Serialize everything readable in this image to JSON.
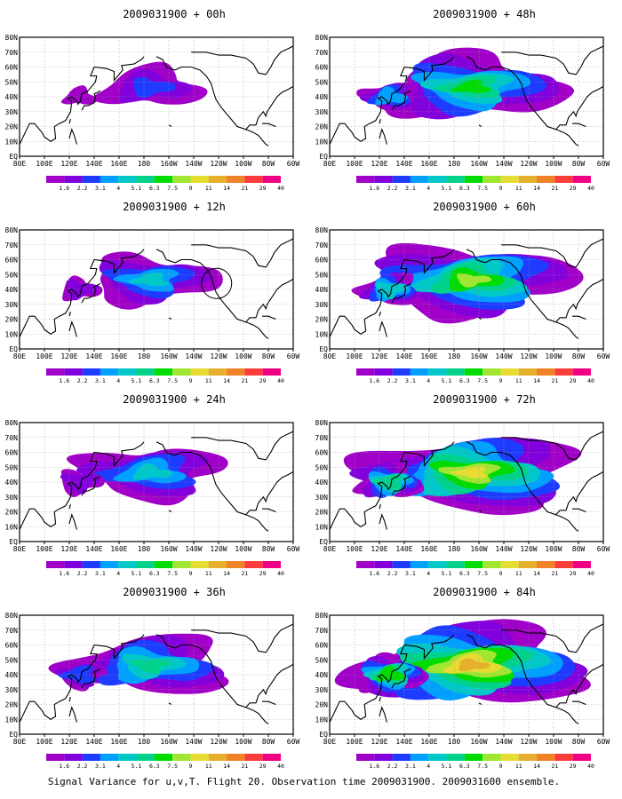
{
  "caption": "Signal Variance for u,v,T. Flight 20. Observation time 2009031900. 2009031600 ensemble.",
  "colorbar": {
    "labels": [
      "1.6",
      "2.2",
      "3.1",
      "4",
      "5.1",
      "6.3",
      "7.5",
      "9",
      "11",
      "14",
      "21",
      "29",
      "40"
    ],
    "colors": [
      "#a000c8",
      "#8200dc",
      "#1e3cff",
      "#00a0ff",
      "#00c8c8",
      "#00d28c",
      "#00dc00",
      "#a0e632",
      "#e6dc32",
      "#e6af2d",
      "#f08228",
      "#fa3c3c",
      "#f00082"
    ]
  },
  "axes": {
    "lon_labels": [
      "80E",
      "100E",
      "120E",
      "140E",
      "160E",
      "180",
      "160W",
      "140W",
      "120W",
      "100W",
      "80W",
      "60W"
    ],
    "lat_labels": [
      "80N",
      "70N",
      "60N",
      "50N",
      "40N",
      "30N",
      "20N",
      "10N",
      "EQ"
    ]
  },
  "panels": [
    {
      "title": "2009031900 + 00h",
      "intensity": 0.15,
      "circle": false
    },
    {
      "title": "2009031900 + 12h",
      "intensity": 0.3,
      "circle": true
    },
    {
      "title": "2009031900 + 24h",
      "intensity": 0.38,
      "circle": false
    },
    {
      "title": "2009031900 + 36h",
      "intensity": 0.48,
      "circle": false
    },
    {
      "title": "2009031900 + 48h",
      "intensity": 0.58,
      "circle": false
    },
    {
      "title": "2009031900 + 60h",
      "intensity": 0.68,
      "circle": false
    },
    {
      "title": "2009031900 + 72h",
      "intensity": 0.76,
      "circle": false
    },
    {
      "title": "2009031900 + 84h",
      "intensity": 0.85,
      "circle": false
    }
  ]
}
